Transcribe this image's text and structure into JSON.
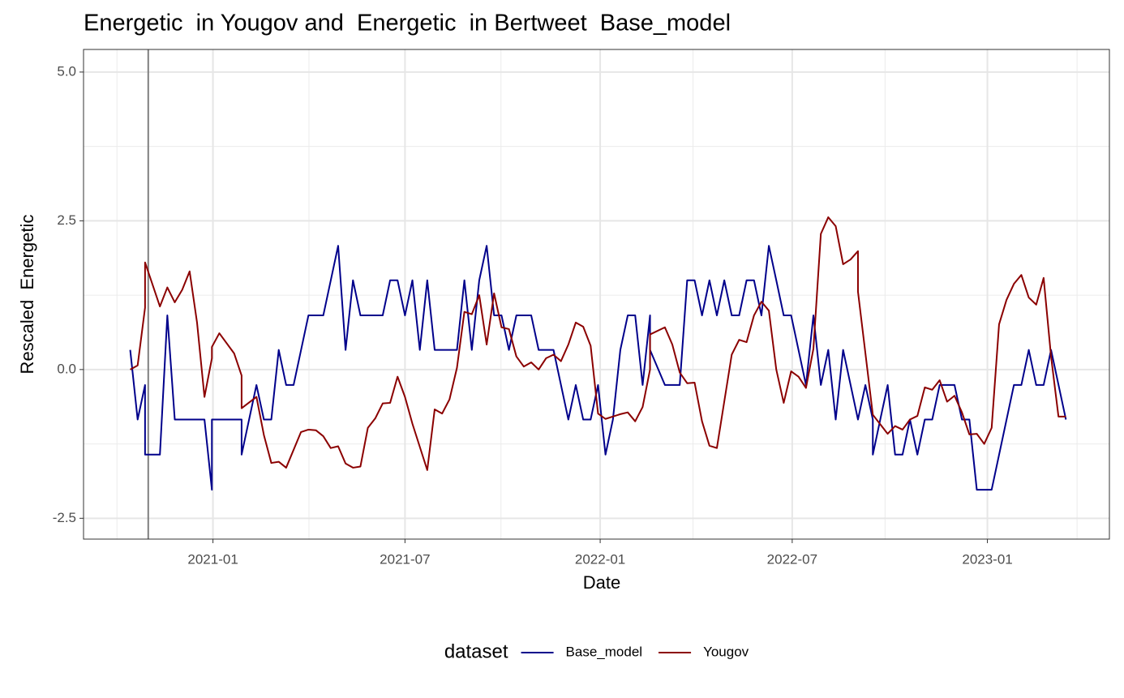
{
  "chart_data": {
    "type": "line",
    "title": "Energetic  in Yougov and  Energetic  in Bertweet  Base_model",
    "x_label": "Date",
    "y_label": "Rescaled  Energetic",
    "legend_title": "dataset",
    "legend_position": "bottom",
    "grid": true,
    "xlim": [
      "2020-09-01",
      "2023-04-26"
    ],
    "xticks": [
      "2021-01",
      "2021-07",
      "2022-01",
      "2022-07",
      "2023-01"
    ],
    "ylim": [
      -2.85,
      5.38
    ],
    "yticks": [
      {
        "value": -2.5,
        "label": "-2.5"
      },
      {
        "value": 0,
        "label": "0.0"
      },
      {
        "value": 2.5,
        "label": "2.5"
      },
      {
        "value": 5,
        "label": "5.0"
      }
    ],
    "vlines": [
      "2020-11-01"
    ],
    "series": [
      {
        "name": "Base_model",
        "color": "#00008b",
        "x": [
          "2020-10-15",
          "2020-10-22",
          "2020-10-29",
          "2020-10-29",
          "2020-11-12",
          "2020-11-19",
          "2020-11-26",
          "2020-12-24",
          "2020-12-31",
          "2020-12-31",
          "2021-01-28",
          "2021-01-28",
          "2021-02-11",
          "2021-02-18",
          "2021-02-25",
          "2021-03-04",
          "2021-03-11",
          "2021-03-18",
          "2021-04-01",
          "2021-04-15",
          "2021-04-29",
          "2021-05-06",
          "2021-05-13",
          "2021-05-20",
          "2021-06-10",
          "2021-06-17",
          "2021-06-24",
          "2021-07-01",
          "2021-07-08",
          "2021-07-15",
          "2021-07-22",
          "2021-07-29",
          "2021-08-19",
          "2021-08-26",
          "2021-09-02",
          "2021-09-09",
          "2021-09-16",
          "2021-09-23",
          "2021-09-30",
          "2021-10-07",
          "2021-10-14",
          "2021-10-28",
          "2021-11-04",
          "2021-11-18",
          "2021-12-02",
          "2021-12-09",
          "2021-12-16",
          "2021-12-23",
          "2021-12-30",
          "2022-01-06",
          "2022-01-13",
          "2022-01-20",
          "2022-01-27",
          "2022-02-03",
          "2022-02-10",
          "2022-02-17",
          "2022-02-17",
          "2022-03-03",
          "2022-03-17",
          "2022-03-24",
          "2022-03-31",
          "2022-04-07",
          "2022-04-14",
          "2022-04-21",
          "2022-04-28",
          "2022-05-05",
          "2022-05-12",
          "2022-05-19",
          "2022-05-26",
          "2022-06-02",
          "2022-06-09",
          "2022-06-16",
          "2022-06-23",
          "2022-06-30",
          "2022-07-14",
          "2022-07-21",
          "2022-07-28",
          "2022-08-04",
          "2022-08-11",
          "2022-08-18",
          "2022-09-01",
          "2022-09-08",
          "2022-09-15",
          "2022-09-15",
          "2022-09-22",
          "2022-09-29",
          "2022-10-06",
          "2022-10-13",
          "2022-10-20",
          "2022-10-27",
          "2022-11-03",
          "2022-11-10",
          "2022-11-17",
          "2022-12-01",
          "2022-12-08",
          "2022-12-15",
          "2022-12-22",
          "2023-01-05",
          "2023-01-26",
          "2023-02-02",
          "2023-02-09",
          "2023-02-16",
          "2023-02-23",
          "2023-03-02",
          "2023-03-16"
        ],
        "values": [
          0.33,
          -0.84,
          -0.26,
          -1.43,
          -1.43,
          0.91,
          -0.84,
          -0.84,
          -2.02,
          -0.84,
          -0.84,
          -1.43,
          -0.26,
          -0.84,
          -0.84,
          0.33,
          -0.26,
          -0.26,
          0.91,
          0.91,
          2.08,
          0.33,
          1.5,
          0.91,
          0.91,
          1.5,
          1.5,
          0.91,
          1.5,
          0.33,
          1.5,
          0.33,
          0.33,
          1.5,
          0.33,
          1.5,
          2.08,
          0.91,
          0.91,
          0.33,
          0.91,
          0.91,
          0.33,
          0.33,
          -0.84,
          -0.26,
          -0.84,
          -0.84,
          -0.26,
          -1.43,
          -0.84,
          0.33,
          0.91,
          0.91,
          -0.26,
          0.91,
          0.33,
          -0.26,
          -0.26,
          1.5,
          1.5,
          0.91,
          1.5,
          0.91,
          1.5,
          0.91,
          0.91,
          1.5,
          1.5,
          0.91,
          2.08,
          1.5,
          0.91,
          0.91,
          -0.26,
          0.91,
          -0.26,
          0.33,
          -0.84,
          0.33,
          -0.84,
          -0.26,
          -0.84,
          -1.43,
          -0.84,
          -0.26,
          -1.43,
          -1.43,
          -0.84,
          -1.43,
          -0.84,
          -0.84,
          -0.26,
          -0.26,
          -0.84,
          -0.84,
          -2.02,
          -2.02,
          -0.26,
          -0.26,
          0.33,
          -0.26,
          -0.26,
          0.33,
          -0.84
        ]
      },
      {
        "name": "Yougov",
        "color": "#8b0000",
        "x": [
          "2020-10-15",
          "2020-10-22",
          "2020-10-29",
          "2020-10-29",
          "2020-11-12",
          "2020-11-19",
          "2020-11-26",
          "2020-12-03",
          "2020-12-10",
          "2020-12-17",
          "2020-12-24",
          "2020-12-31",
          "2020-12-31",
          "2021-01-07",
          "2021-01-21",
          "2021-01-28",
          "2021-01-28",
          "2021-02-11",
          "2021-02-18",
          "2021-02-25",
          "2021-03-04",
          "2021-03-11",
          "2021-03-25",
          "2021-04-01",
          "2021-04-08",
          "2021-04-15",
          "2021-04-22",
          "2021-04-29",
          "2021-05-06",
          "2021-05-13",
          "2021-05-20",
          "2021-05-27",
          "2021-06-03",
          "2021-06-10",
          "2021-06-17",
          "2021-06-24",
          "2021-07-01",
          "2021-07-08",
          "2021-07-22",
          "2021-07-29",
          "2021-08-05",
          "2021-08-12",
          "2021-08-19",
          "2021-08-26",
          "2021-09-02",
          "2021-09-09",
          "2021-09-16",
          "2021-09-23",
          "2021-09-30",
          "2021-10-07",
          "2021-10-14",
          "2021-10-21",
          "2021-10-28",
          "2021-11-04",
          "2021-11-11",
          "2021-11-18",
          "2021-11-25",
          "2021-12-02",
          "2021-12-09",
          "2021-12-16",
          "2021-12-23",
          "2021-12-30",
          "2022-01-06",
          "2022-01-13",
          "2022-01-20",
          "2022-01-27",
          "2022-02-03",
          "2022-02-10",
          "2022-02-17",
          "2022-02-17",
          "2022-03-03",
          "2022-03-10",
          "2022-03-17",
          "2022-03-24",
          "2022-03-31",
          "2022-04-07",
          "2022-04-14",
          "2022-04-21",
          "2022-05-05",
          "2022-05-12",
          "2022-05-19",
          "2022-05-26",
          "2022-06-02",
          "2022-06-09",
          "2022-06-16",
          "2022-06-23",
          "2022-06-30",
          "2022-07-07",
          "2022-07-14",
          "2022-07-21",
          "2022-07-28",
          "2022-08-04",
          "2022-08-11",
          "2022-08-18",
          "2022-08-25",
          "2022-09-01",
          "2022-09-01",
          "2022-09-15",
          "2022-09-29",
          "2022-10-06",
          "2022-10-13",
          "2022-10-20",
          "2022-10-27",
          "2022-11-03",
          "2022-11-10",
          "2022-11-17",
          "2022-11-24",
          "2022-12-01",
          "2022-12-08",
          "2022-12-15",
          "2022-12-22",
          "2022-12-29",
          "2023-01-05",
          "2023-01-12",
          "2023-01-19",
          "2023-01-26",
          "2023-02-02",
          "2023-02-09",
          "2023-02-16",
          "2023-02-23",
          "2023-03-02",
          "2023-03-09",
          "2023-03-16"
        ],
        "values": [
          0,
          0.07,
          1.04,
          1.8,
          1.06,
          1.38,
          1.13,
          1.34,
          1.65,
          0.79,
          -0.46,
          0.19,
          0.38,
          0.61,
          0.27,
          -0.1,
          -0.65,
          -0.46,
          -1.1,
          -1.57,
          -1.55,
          -1.65,
          -1.05,
          -1.01,
          -1.02,
          -1.12,
          -1.32,
          -1.29,
          -1.58,
          -1.65,
          -1.63,
          -0.98,
          -0.82,
          -0.57,
          -0.56,
          -0.12,
          -0.46,
          -0.91,
          -1.69,
          -0.67,
          -0.74,
          -0.5,
          0.03,
          0.97,
          0.93,
          1.25,
          0.42,
          1.28,
          0.71,
          0.68,
          0.22,
          0.05,
          0.12,
          0,
          0.19,
          0.25,
          0.14,
          0.42,
          0.79,
          0.72,
          0.4,
          -0.74,
          -0.83,
          -0.79,
          -0.75,
          -0.72,
          -0.87,
          -0.63,
          0,
          0.59,
          0.71,
          0.42,
          -0.05,
          -0.23,
          -0.22,
          -0.87,
          -1.28,
          -1.32,
          0.25,
          0.5,
          0.46,
          0.91,
          1.14,
          0.99,
          0,
          -0.56,
          -0.03,
          -0.12,
          -0.31,
          0.35,
          2.28,
          2.56,
          2.41,
          1.77,
          1.85,
          1.99,
          1.31,
          -0.76,
          -1.08,
          -0.95,
          -1.01,
          -0.84,
          -0.78,
          -0.3,
          -0.34,
          -0.18,
          -0.54,
          -0.44,
          -0.72,
          -1.09,
          -1.08,
          -1.25,
          -0.98,
          0.76,
          1.17,
          1.44,
          1.59,
          1.21,
          1.09,
          1.54,
          0.22,
          -0.79,
          -0.79
        ]
      }
    ]
  }
}
